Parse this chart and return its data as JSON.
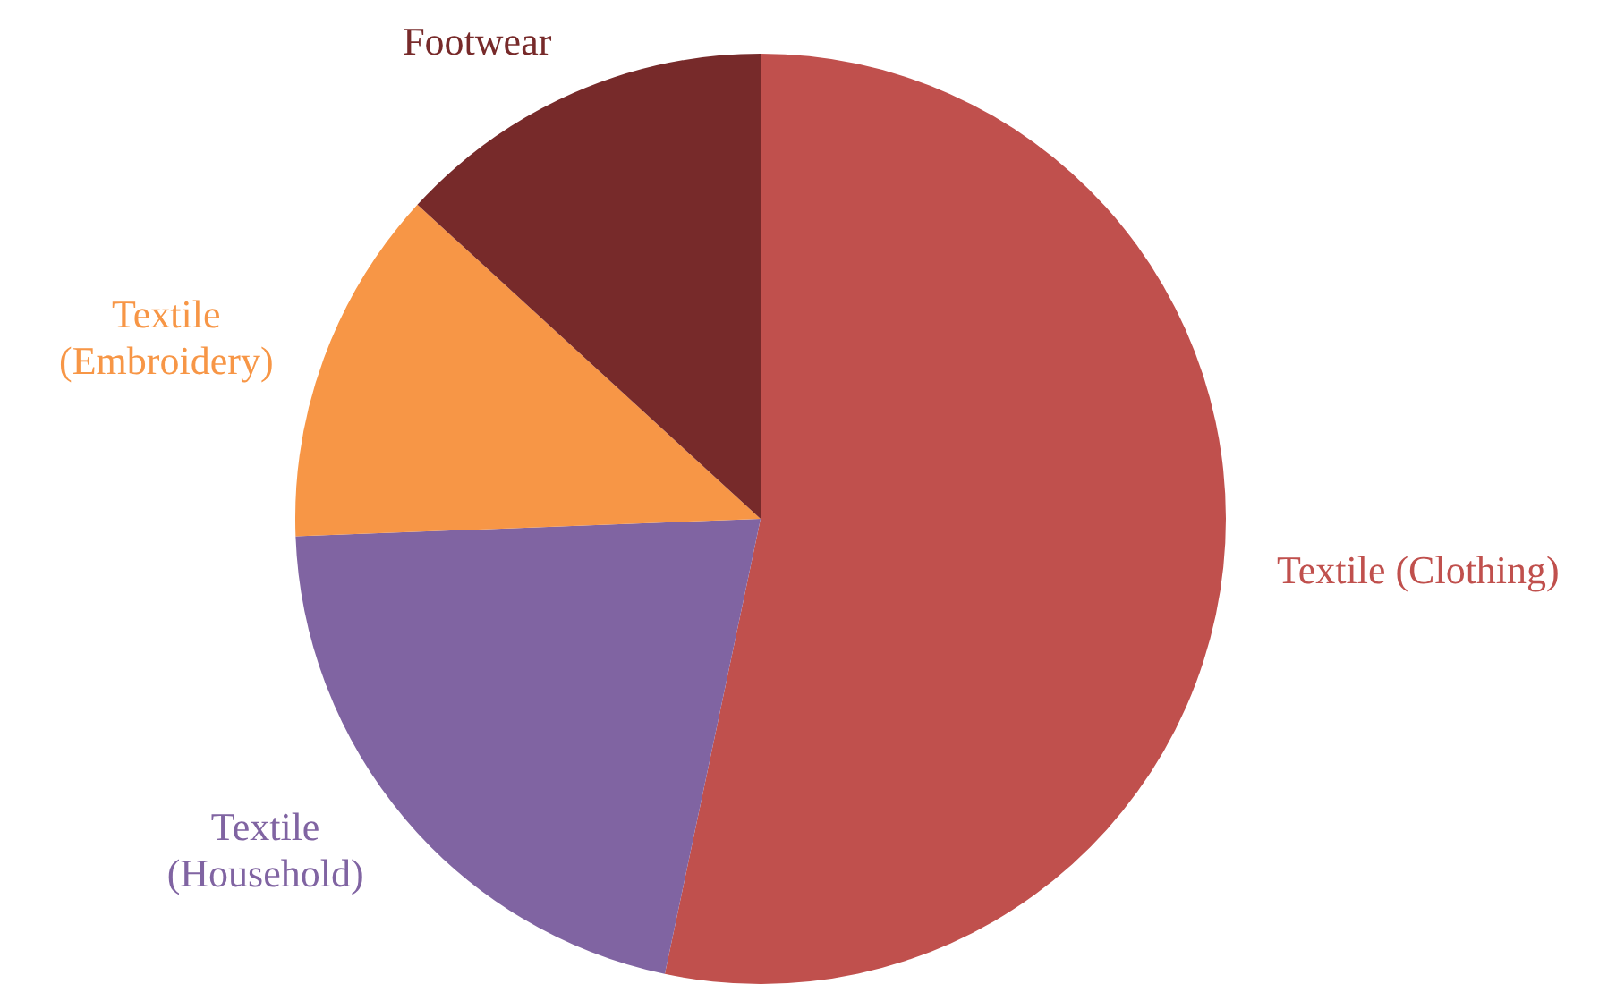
{
  "chart_data": {
    "type": "pie",
    "categories": [
      "Textile (Clothing)",
      "Textile (Household)",
      "Textile (Embroidery)",
      "Footwear"
    ],
    "values": [
      53.3,
      21.1,
      12.4,
      13.2
    ],
    "colors": [
      "#c0504d",
      "#8064a2",
      "#f79646",
      "#772a2a"
    ],
    "legend": false
  }
}
